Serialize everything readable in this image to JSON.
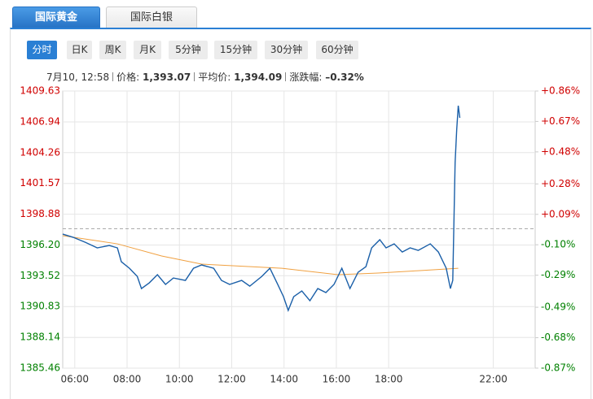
{
  "tabs": [
    "国际黄金",
    "国际白银"
  ],
  "periods": [
    "分时",
    "日K",
    "周K",
    "月K",
    "5分钟",
    "15分钟",
    "30分钟",
    "60分钟"
  ],
  "info": {
    "time": "7月10, 12:58",
    "price_label": "价格:",
    "price": "1,393.07",
    "avg_label": "平均价:",
    "avg": "1,394.09",
    "change_label": "涨跌幅:",
    "change": "–0.32%"
  },
  "chart_data": {
    "type": "line",
    "series": [
      {
        "color": "#1a5fa8",
        "x": [
          5.54,
          5.94,
          6.4,
          6.86,
          7.32,
          7.63,
          7.78,
          8.09,
          8.39,
          8.55,
          8.85,
          9.16,
          9.47,
          9.77,
          10.23,
          10.54,
          10.85,
          11.31,
          11.61,
          11.92,
          12.38,
          12.69,
          13.15,
          13.46,
          13.76,
          13.98,
          14.16,
          14.37,
          14.68,
          14.99,
          15.29,
          15.6,
          15.91,
          16.21,
          16.52,
          16.83,
          17.13,
          17.35,
          17.66,
          17.9,
          18.21,
          18.52,
          18.82,
          19.13,
          19.59,
          19.9,
          20.2,
          20.36,
          20.45,
          20.54,
          20.6,
          20.66,
          20.72
        ],
        "values": [
          1397.15,
          1396.87,
          1396.44,
          1395.95,
          1396.16,
          1395.95,
          1394.74,
          1394.17,
          1393.46,
          1392.4,
          1392.9,
          1393.61,
          1392.76,
          1393.32,
          1393.11,
          1394.17,
          1394.46,
          1394.17,
          1393.11,
          1392.76,
          1393.11,
          1392.61,
          1393.46,
          1394.17,
          1392.76,
          1391.69,
          1390.49,
          1391.69,
          1392.19,
          1391.34,
          1392.4,
          1392.05,
          1392.76,
          1394.17,
          1392.4,
          1393.82,
          1394.31,
          1395.95,
          1396.66,
          1395.95,
          1396.3,
          1395.59,
          1395.95,
          1395.73,
          1396.3,
          1395.59,
          1394.17,
          1392.4,
          1393.11,
          1403.39,
          1406.23,
          1408.35,
          1407.29
        ]
      },
      {
        "color": "#f0a040",
        "x": [
          5.54,
          7.63,
          9.32,
          10.85,
          13.92,
          16.06,
          17.6,
          19.13,
          20.66
        ],
        "values": [
          1397.01,
          1396.3,
          1395.24,
          1394.53,
          1394.17,
          1393.61,
          1393.75,
          1393.96,
          1394.17
        ]
      }
    ],
    "xlim": [
      5.54,
      23.6
    ],
    "xticks": [
      {
        "value": 6,
        "label": "06:00"
      },
      {
        "value": 8,
        "label": "08:00"
      },
      {
        "value": 10,
        "label": "10:00"
      },
      {
        "value": 12,
        "label": "12:00"
      },
      {
        "value": 14,
        "label": "14:00"
      },
      {
        "value": 16,
        "label": "16:00"
      },
      {
        "value": 18,
        "label": "18:00"
      },
      {
        "value": 22,
        "label": "22:00"
      }
    ],
    "ylim": [
      1385.46,
      1409.63
    ],
    "yticks": [
      1409.63,
      1406.94,
      1404.26,
      1401.57,
      1398.88,
      {
        "value": 1396.2,
        "label": "1396.20"
      },
      1393.52,
      1390.83,
      1388.14,
      1385.46
    ],
    "y2lim": [
      -0.87,
      0.86
    ],
    "y2ticks": [
      {
        "value": 0.86,
        "label": "+0.86%"
      },
      {
        "value": 0.67,
        "label": "+0.67%"
      },
      {
        "value": 0.48,
        "label": "+0.48%"
      },
      {
        "value": 0.28,
        "label": "+0.28%"
      },
      {
        "value": 0.09,
        "label": "+0.09%"
      },
      {
        "value": -0.1,
        "label": "-0.10%"
      },
      {
        "value": -0.29,
        "label": "-0.29%"
      },
      {
        "value": -0.49,
        "label": "-0.49%"
      },
      {
        "value": -0.68,
        "label": "-0.68%"
      },
      {
        "value": -0.87,
        "label": "-0.87%"
      }
    ],
    "grid": true,
    "up_color": "#d00000",
    "down_color": "#008000"
  }
}
